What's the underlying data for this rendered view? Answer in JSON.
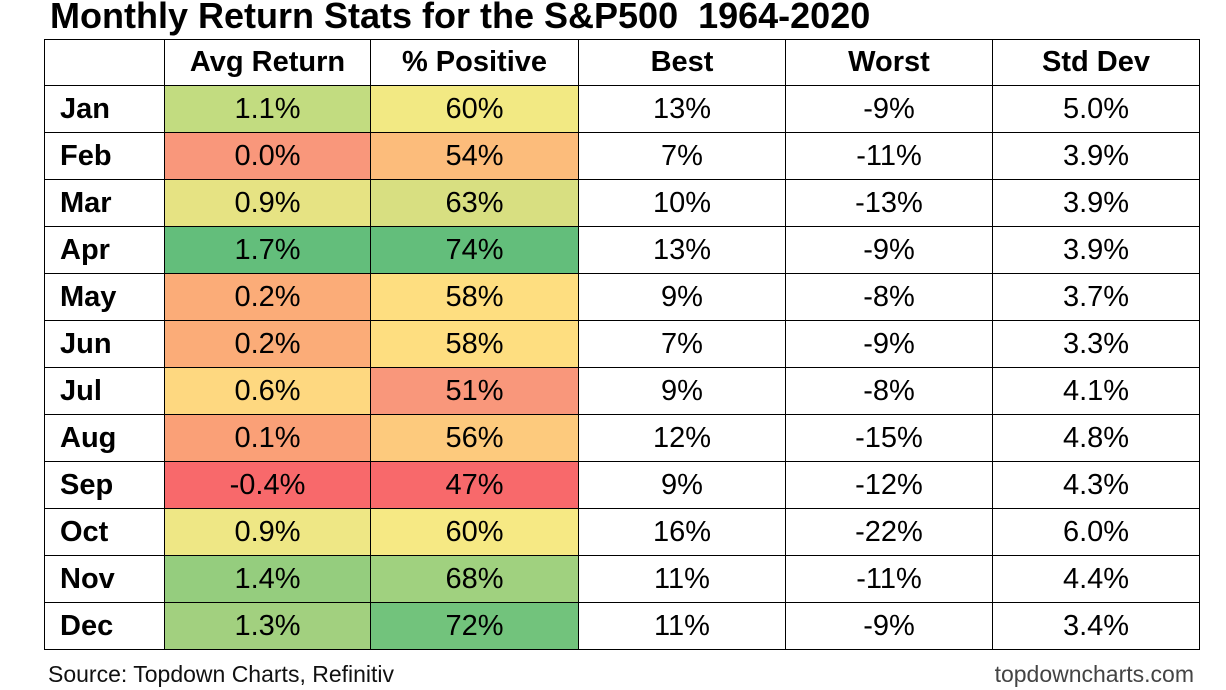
{
  "title": "Monthly Return Stats for the S&P500  1964-2020",
  "source": "Source: Topdown Charts, Refinitiv",
  "brand": "topdowncharts.com",
  "chart_data": {
    "type": "table",
    "title": "Monthly Return Stats for the S&P500  1964-2020",
    "columns": [
      "",
      "Avg Return",
      "% Positive",
      "Best",
      "Worst",
      "Std Dev"
    ],
    "rows": [
      {
        "month": "Jan",
        "avg": "1.1%",
        "pos": "60%",
        "best": "13%",
        "worst": "-9%",
        "std": "5.0%",
        "avg_color": "#c2dc80",
        "pos_color": "#f2e983"
      },
      {
        "month": "Feb",
        "avg": "0.0%",
        "pos": "54%",
        "best": "7%",
        "worst": "-11%",
        "std": "3.9%",
        "avg_color": "#f9977b",
        "pos_color": "#fcbc7b"
      },
      {
        "month": "Mar",
        "avg": "0.9%",
        "pos": "63%",
        "best": "10%",
        "worst": "-13%",
        "std": "3.9%",
        "avg_color": "#e6e383",
        "pos_color": "#d8df81"
      },
      {
        "month": "Apr",
        "avg": "1.7%",
        "pos": "74%",
        "best": "13%",
        "worst": "-9%",
        "std": "3.9%",
        "avg_color": "#63be7b",
        "pos_color": "#63be7b"
      },
      {
        "month": "May",
        "avg": "0.2%",
        "pos": "58%",
        "best": "9%",
        "worst": "-8%",
        "std": "3.7%",
        "avg_color": "#fbac78",
        "pos_color": "#fede80"
      },
      {
        "month": "Jun",
        "avg": "0.2%",
        "pos": "58%",
        "best": "7%",
        "worst": "-9%",
        "std": "3.3%",
        "avg_color": "#fbac78",
        "pos_color": "#fede80"
      },
      {
        "month": "Jul",
        "avg": "0.6%",
        "pos": "51%",
        "best": "9%",
        "worst": "-8%",
        "std": "4.1%",
        "avg_color": "#fed880",
        "pos_color": "#f9977b"
      },
      {
        "month": "Aug",
        "avg": "0.1%",
        "pos": "56%",
        "best": "12%",
        "worst": "-15%",
        "std": "4.8%",
        "avg_color": "#faa077",
        "pos_color": "#fdca7d"
      },
      {
        "month": "Sep",
        "avg": "-0.4%",
        "pos": "47%",
        "best": "9%",
        "worst": "-12%",
        "std": "4.3%",
        "avg_color": "#f8696b",
        "pos_color": "#f8696b"
      },
      {
        "month": "Oct",
        "avg": "0.9%",
        "pos": "60%",
        "best": "16%",
        "worst": "-22%",
        "std": "6.0%",
        "avg_color": "#eee785",
        "pos_color": "#f6e984"
      },
      {
        "month": "Nov",
        "avg": "1.4%",
        "pos": "68%",
        "best": "11%",
        "worst": "-11%",
        "std": "4.4%",
        "avg_color": "#95cd7e",
        "pos_color": "#a0d17f"
      },
      {
        "month": "Dec",
        "avg": "1.3%",
        "pos": "72%",
        "best": "11%",
        "worst": "-9%",
        "std": "3.4%",
        "avg_color": "#a2d07f",
        "pos_color": "#72c37c"
      }
    ]
  }
}
